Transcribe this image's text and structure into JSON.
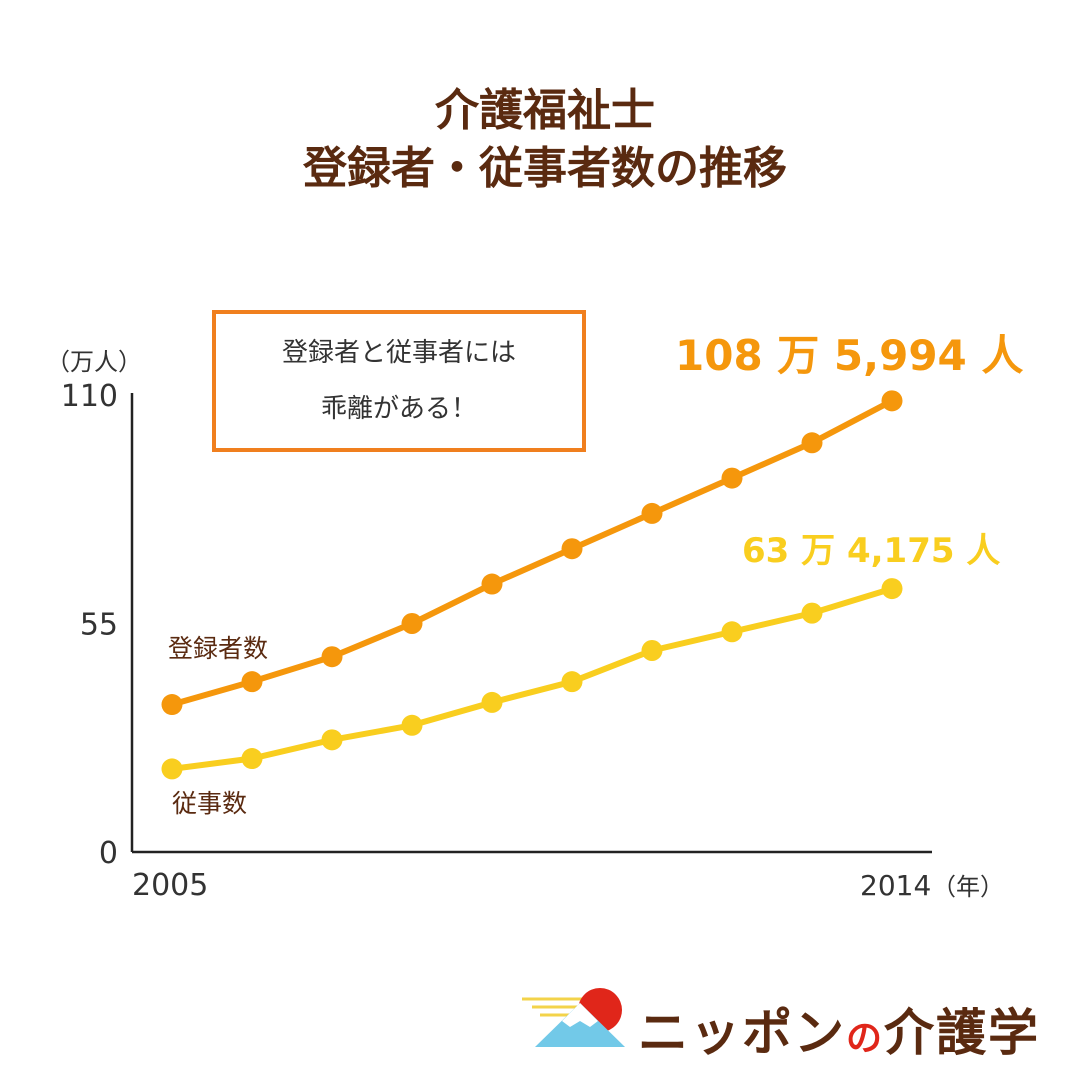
{
  "title": {
    "line1": "介護福祉士",
    "line2": "登録者・従事者数の推移"
  },
  "callout": {
    "line1": "登録者と従事者には",
    "line2": "乖離がある！"
  },
  "logo": {
    "name_a": "ニッポン",
    "name_b": "の",
    "name_c": "介護学"
  },
  "colors": {
    "registered": "#f5970c",
    "employed": "#f9ce1f",
    "axis": "#222222",
    "label_dark": "#5a2a10",
    "callout_border": "#f07f1e"
  },
  "chart_data": {
    "type": "line",
    "x": [
      2005,
      2006,
      2007,
      2008,
      2009,
      2010,
      2011,
      2012,
      2013,
      2014
    ],
    "x_tick_labels": [
      "2005",
      "2014"
    ],
    "x_unit": "（年）",
    "y_unit": "（万人）",
    "ylim": [
      0,
      110
    ],
    "y_ticks": [
      "0",
      "55",
      "110"
    ],
    "grid": false,
    "series": [
      {
        "name": "登録者数",
        "color": "#f5970c",
        "values": [
          35.5,
          41,
          47,
          55,
          64.5,
          73,
          81.5,
          90,
          98.5,
          108.6
        ],
        "end_label": "108 万 5,994 人"
      },
      {
        "name": "従事数",
        "color": "#f9ce1f",
        "values": [
          20,
          22.5,
          27,
          30.5,
          36,
          41,
          48.5,
          53,
          57.5,
          63.4
        ],
        "end_label": "63 万 4,175 人"
      }
    ]
  }
}
